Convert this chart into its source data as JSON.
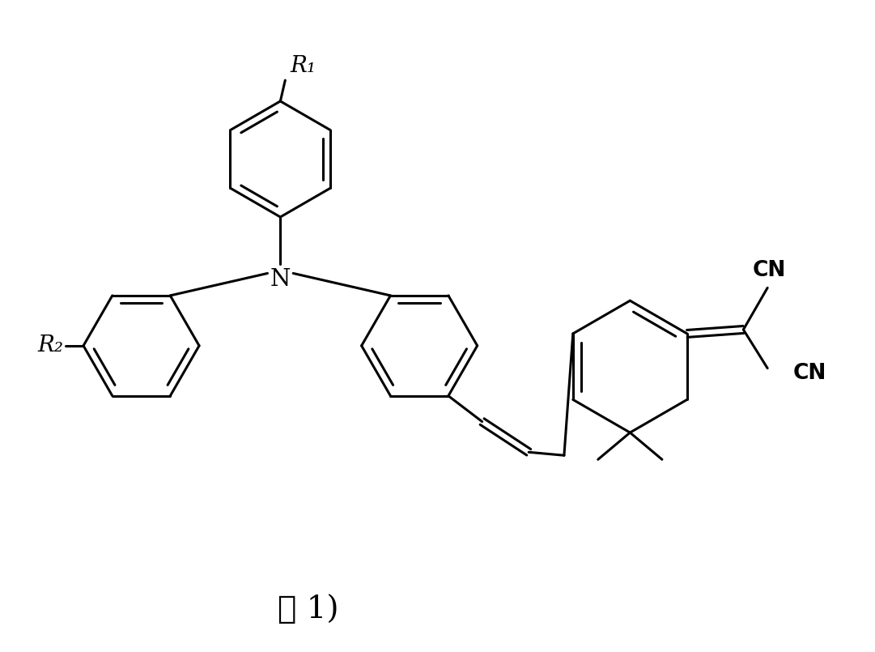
{
  "background_color": "#ffffff",
  "line_color": "#000000",
  "line_width": 2.2,
  "label_式1": "式 1)",
  "label_R1": "R₁",
  "label_R2": "R₂",
  "label_N": "N",
  "label_CN1": "CN",
  "label_CN2": "CN",
  "figsize": [
    10.81,
    8.05
  ],
  "dpi": 100
}
